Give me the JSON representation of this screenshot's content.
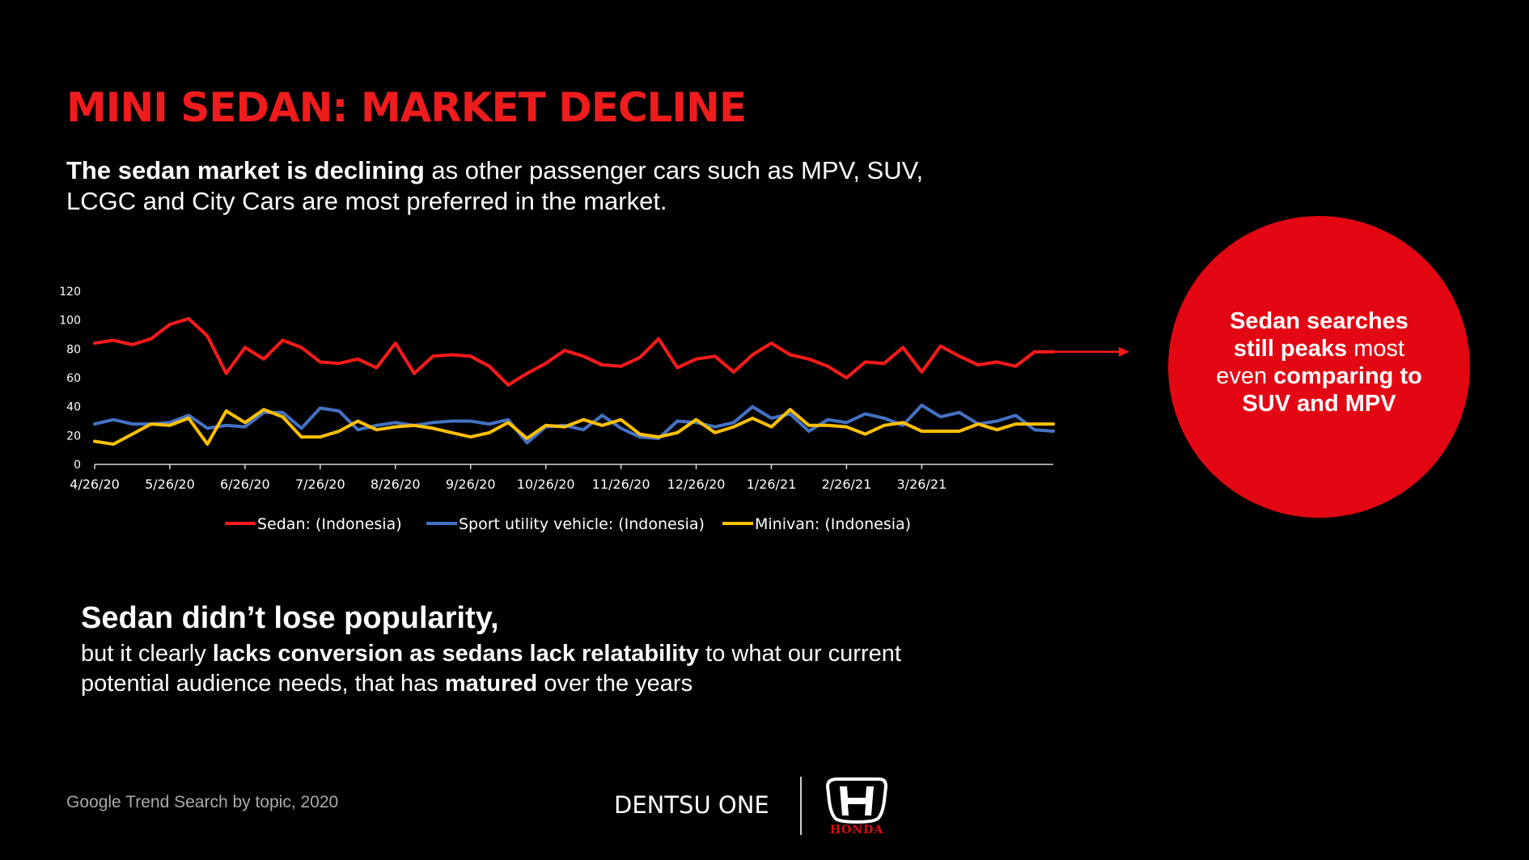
{
  "slide": {
    "title": "MINI SEDAN: MARKET DECLINE",
    "intro": {
      "bold": "The sedan market is declining",
      "rest": " as other passenger cars such as MPV, SUV, LCGC and City Cars are most preferred in the market."
    },
    "callout": {
      "p1_bold": "Sedan searches",
      "p2_bold": "still peaks",
      "p3": " most even ",
      "p4_bold": "comparing to SUV and MPV"
    },
    "conclusion": {
      "heading": "Sedan didn’t lose popularity,",
      "b1": "but it clearly ",
      "b2_bold": "lacks conversion as sedans lack relatability",
      "b3": " to what our current potential audience needs, that has ",
      "b4_bold": "matured",
      "b5": " over the years"
    },
    "source": "Google Trend Search by topic, 2020",
    "brand": "DENTSU ONE",
    "logo_text": "HONDA"
  },
  "colors": {
    "background": "#000000",
    "title": "#ee1c1c",
    "circle": "#e30613",
    "sedan": "#ff1a1a",
    "suv": "#4472c4",
    "minivan": "#ffc000"
  },
  "chart_data": {
    "type": "line",
    "ylim": [
      0,
      120
    ],
    "yticks": [
      0,
      20,
      40,
      60,
      80,
      100,
      120
    ],
    "xtick_labels": [
      "4/26/20",
      "5/26/20",
      "6/26/20",
      "7/26/20",
      "8/26/20",
      "9/26/20",
      "10/26/20",
      "11/26/20",
      "12/26/20",
      "1/26/21",
      "2/26/21",
      "3/26/21"
    ],
    "xtick_index": [
      0,
      4,
      8,
      12,
      16,
      20,
      24,
      28,
      32,
      36,
      40,
      44
    ],
    "grid": false,
    "legend_position": "bottom",
    "series": [
      {
        "name": "Sedan: (Indonesia)",
        "color": "#ff1a1a",
        "values": [
          84,
          86,
          83,
          87,
          97,
          101,
          89,
          63,
          81,
          73,
          86,
          81,
          71,
          70,
          73,
          67,
          84,
          63,
          75,
          76,
          75,
          68,
          55,
          63,
          70,
          79,
          75,
          69,
          68,
          74,
          87,
          67,
          73,
          75,
          64,
          76,
          84,
          76,
          73,
          68,
          60,
          71,
          70,
          81,
          64,
          82,
          75,
          69,
          71,
          68,
          78,
          78
        ]
      },
      {
        "name": "Sport utility vehicle: (Indonesia)",
        "color": "#4472c4",
        "values": [
          28,
          31,
          28,
          28,
          29,
          34,
          25,
          27,
          26,
          36,
          36,
          25,
          39,
          37,
          24,
          27,
          29,
          27,
          29,
          30,
          30,
          28,
          31,
          15,
          26,
          27,
          24,
          34,
          25,
          19,
          18,
          30,
          29,
          26,
          29,
          40,
          32,
          35,
          23,
          31,
          29,
          35,
          32,
          27,
          41,
          33,
          36,
          28,
          30,
          34,
          24,
          23
        ]
      },
      {
        "name": "Minivan: (Indonesia)",
        "color": "#ffc000",
        "values": [
          16,
          14,
          21,
          28,
          27,
          32,
          14,
          37,
          29,
          38,
          33,
          19,
          19,
          23,
          30,
          24,
          26,
          27,
          25,
          22,
          19,
          22,
          29,
          18,
          27,
          26,
          31,
          27,
          31,
          21,
          19,
          22,
          31,
          22,
          26,
          32,
          26,
          38,
          27,
          27,
          26,
          21,
          27,
          29,
          23,
          23,
          23,
          28,
          24,
          28,
          28,
          28
        ]
      }
    ]
  }
}
